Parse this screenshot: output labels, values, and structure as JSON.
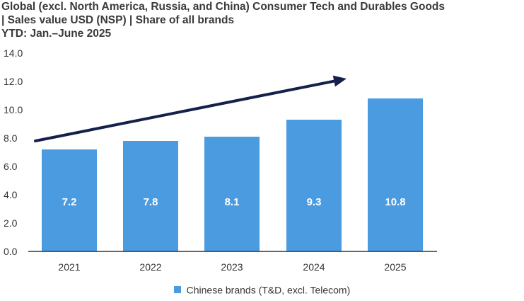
{
  "title_lines": [
    "Global (excl. North America, Russia, and China) Consumer Tech and Durables Goods",
    "| Sales value USD (NSP) | Share of all brands",
    "YTD: Jan.–June 2025"
  ],
  "chart_data": {
    "type": "bar",
    "title": "Global (excl. North America, Russia, and China) Consumer Tech and Durables Goods | Sales value USD (NSP) | Share of all brands YTD: Jan.–June 2025",
    "categories": [
      "2021",
      "2022",
      "2023",
      "2024",
      "2025"
    ],
    "series": [
      {
        "name": "Chinese brands (T&D, excl. Telecom)",
        "values": [
          7.2,
          7.8,
          8.1,
          9.3,
          10.8
        ],
        "color": "#4b9be0"
      }
    ],
    "data_labels": [
      "7.2",
      "7.8",
      "8.1",
      "9.3",
      "10.8"
    ],
    "y_ticks": [
      "0.0",
      "2.0",
      "4.0",
      "6.0",
      "8.0",
      "10.0",
      "12.0",
      "14.0"
    ],
    "ylim": [
      0,
      14
    ],
    "xlabel": "",
    "ylabel": "",
    "legend_position": "bottom",
    "annotations": [
      {
        "type": "trend-arrow",
        "direction": "up"
      }
    ],
    "grid": false
  },
  "colors": {
    "bar": "#4b9be0",
    "arrow": "#15204b",
    "axis": "#333333",
    "label": "#ffffff"
  }
}
